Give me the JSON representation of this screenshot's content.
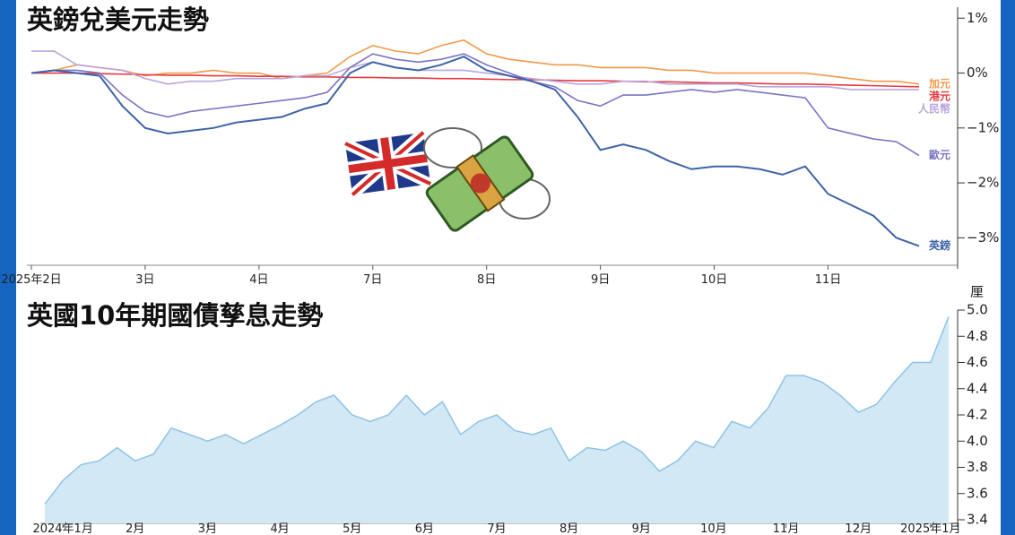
{
  "chart_data": [
    {
      "type": "line",
      "title": "英鎊兌美元走勢",
      "categories": [
        "2025年2日",
        null,
        null,
        null,
        null,
        "3日",
        null,
        null,
        null,
        null,
        "4日",
        null,
        null,
        null,
        null,
        "7日",
        null,
        null,
        null,
        null,
        "8日",
        null,
        null,
        null,
        null,
        "9日",
        null,
        null,
        null,
        null,
        "10日",
        null,
        null,
        null,
        null,
        "11日",
        null,
        null,
        null,
        null
      ],
      "series": [
        {
          "name": "加元",
          "color": "#f39a4a",
          "values": [
            0,
            0.05,
            0.15,
            0.1,
            0.05,
            -0.05,
            0.0,
            0.0,
            0.05,
            0,
            0,
            -0.1,
            -0.05,
            0.0,
            0.3,
            0.5,
            0.4,
            0.35,
            0.5,
            0.6,
            0.35,
            0.25,
            0.2,
            0.15,
            0.15,
            0.1,
            0.1,
            0.1,
            0.05,
            0.05,
            0,
            0,
            0,
            0,
            0,
            -0.05,
            -0.1,
            -0.15,
            -0.15,
            -0.2
          ]
        },
        {
          "name": "港元",
          "color": "#e8393f",
          "values": [
            0,
            0,
            0,
            -0.01,
            -0.02,
            -0.03,
            -0.04,
            -0.04,
            -0.05,
            -0.05,
            -0.06,
            -0.06,
            -0.07,
            -0.07,
            -0.08,
            -0.08,
            -0.09,
            -0.09,
            -0.1,
            -0.1,
            -0.11,
            -0.12,
            -0.12,
            -0.13,
            -0.14,
            -0.14,
            -0.15,
            -0.16,
            -0.16,
            -0.17,
            -0.18,
            -0.18,
            -0.19,
            -0.2,
            -0.2,
            -0.21,
            -0.22,
            -0.23,
            -0.24,
            -0.25
          ]
        },
        {
          "name": "人民幣",
          "color": "#b9a6dd",
          "values": [
            0.4,
            0.4,
            0.15,
            0.1,
            0.05,
            -0.1,
            -0.2,
            -0.15,
            -0.15,
            -0.1,
            -0.1,
            -0.1,
            -0.05,
            -0.05,
            0.1,
            0.2,
            0.1,
            0.05,
            0.05,
            0.05,
            0,
            -0.05,
            -0.1,
            -0.15,
            -0.2,
            -0.2,
            -0.15,
            -0.15,
            -0.2,
            -0.2,
            -0.2,
            -0.2,
            -0.25,
            -0.25,
            -0.25,
            -0.25,
            -0.3,
            -0.3,
            -0.3,
            -0.3
          ]
        },
        {
          "name": "歐元",
          "color": "#7a74c4",
          "values": [
            0,
            0.05,
            0.05,
            0,
            -0.4,
            -0.7,
            -0.8,
            -0.7,
            -0.65,
            -0.6,
            -0.55,
            -0.5,
            -0.45,
            -0.35,
            0.1,
            0.35,
            0.25,
            0.2,
            0.25,
            0.35,
            0.15,
            0.0,
            -0.15,
            -0.25,
            -0.5,
            -0.6,
            -0.4,
            -0.4,
            -0.35,
            -0.3,
            -0.35,
            -0.3,
            -0.35,
            -0.4,
            -0.45,
            -1.0,
            -1.1,
            -1.2,
            -1.25,
            -1.5
          ]
        },
        {
          "name": "英鎊",
          "color": "#3e64a8",
          "values": [
            0,
            0.05,
            0.0,
            -0.05,
            -0.6,
            -1.0,
            -1.1,
            -1.05,
            -1.0,
            -0.9,
            -0.85,
            -0.8,
            -0.65,
            -0.55,
            0.0,
            0.2,
            0.1,
            0.05,
            0.15,
            0.3,
            0.05,
            -0.05,
            -0.15,
            -0.3,
            -0.8,
            -1.4,
            -1.3,
            -1.4,
            -1.6,
            -1.75,
            -1.7,
            -1.7,
            -1.75,
            -1.85,
            -1.7,
            -2.2,
            -2.4,
            -2.6,
            -3.0,
            -3.15
          ]
        }
      ],
      "ylim": [
        -3.5,
        1.2
      ],
      "yticks": [
        {
          "value": 1,
          "label": "1%"
        },
        {
          "value": 0,
          "label": "0%"
        },
        {
          "value": -1,
          "label": "−1%"
        },
        {
          "value": -2,
          "label": "−2%"
        },
        {
          "value": -3,
          "label": "−3%"
        }
      ]
    },
    {
      "type": "area",
      "title": "英國10年期國債孳息走勢",
      "y_label": "厘",
      "color": "#d3e8f5",
      "line_color": "#8ec3e6",
      "categories": [
        null,
        "2024年1月",
        null,
        null,
        null,
        "2月",
        null,
        null,
        null,
        "3月",
        null,
        null,
        null,
        "4月",
        null,
        null,
        null,
        "5月",
        null,
        null,
        null,
        "6月",
        null,
        null,
        null,
        "7月",
        null,
        null,
        null,
        "8月",
        null,
        null,
        null,
        "9月",
        null,
        null,
        null,
        "10月",
        null,
        null,
        null,
        "11月",
        null,
        null,
        null,
        "12月",
        null,
        null,
        null,
        "2025年1月",
        null
      ],
      "values": [
        3.52,
        3.7,
        3.82,
        3.85,
        3.95,
        3.85,
        3.9,
        4.1,
        4.05,
        4.0,
        4.05,
        3.98,
        4.05,
        4.12,
        4.2,
        4.3,
        4.35,
        4.2,
        4.15,
        4.2,
        4.35,
        4.2,
        4.3,
        4.05,
        4.15,
        4.2,
        4.08,
        4.05,
        4.1,
        3.85,
        3.95,
        3.93,
        4.0,
        3.92,
        3.77,
        3.85,
        4.0,
        3.95,
        4.15,
        4.1,
        4.25,
        4.5,
        4.5,
        4.45,
        4.35,
        4.22,
        4.28,
        4.45,
        4.6,
        4.6,
        4.95
      ],
      "ylim": [
        3.4,
        5.0
      ],
      "yticks": [
        3.4,
        3.6,
        3.8,
        {
          "value": 4,
          "label": "4.0"
        },
        4.2,
        4.4,
        4.6,
        4.8,
        {
          "value": 5,
          "label": "5.0"
        }
      ]
    }
  ]
}
